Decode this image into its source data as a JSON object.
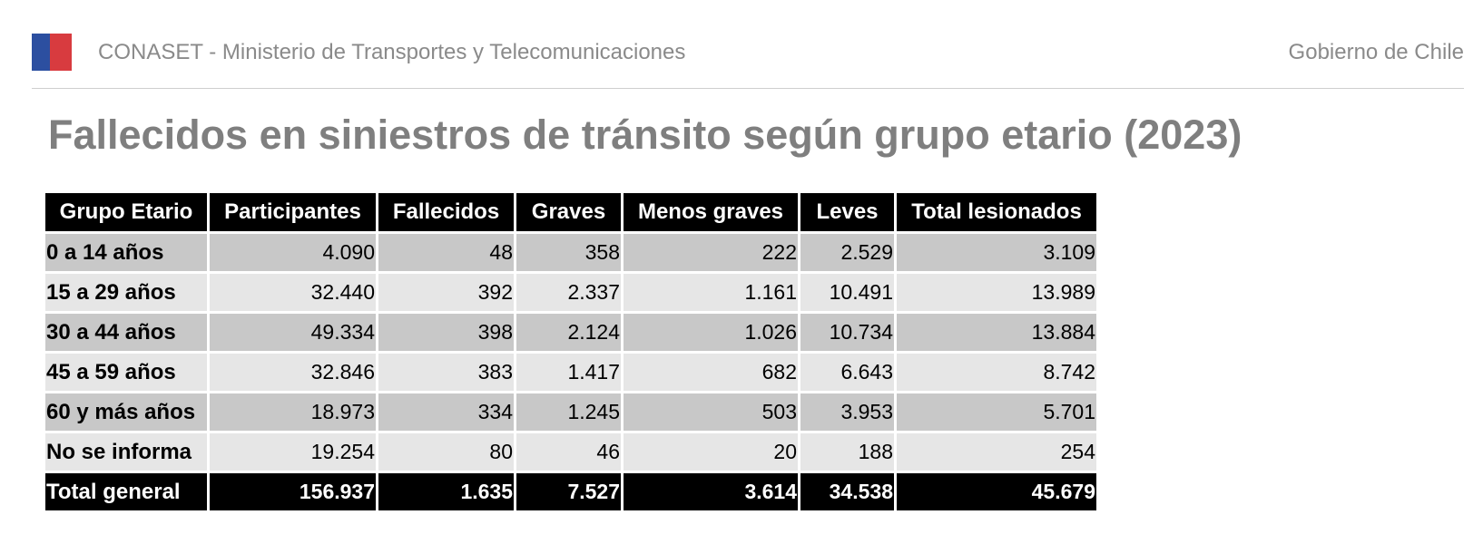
{
  "header": {
    "organization": "CONASET - Ministerio de Transportes y Telecomunicaciones",
    "government": "Gobierno de Chile",
    "flag_colors": [
      "#2c4fa0",
      "#d83b3f"
    ]
  },
  "page_title": "Fallecidos en siniestros de tránsito según grupo etario (2023)",
  "table": {
    "columns": [
      "Grupo Etario",
      "Participantes",
      "Fallecidos",
      "Graves",
      "Menos graves",
      "Leves",
      "Total lesionados"
    ],
    "rows": [
      [
        "0 a 14 años",
        "4.090",
        "48",
        "358",
        "222",
        "2.529",
        "3.109"
      ],
      [
        "15 a 29 años",
        "32.440",
        "392",
        "2.337",
        "1.161",
        "10.491",
        "13.989"
      ],
      [
        "30 a 44 años",
        "49.334",
        "398",
        "2.124",
        "1.026",
        "10.734",
        "13.884"
      ],
      [
        "45 a 59 años",
        "32.846",
        "383",
        "1.417",
        "682",
        "6.643",
        "8.742"
      ],
      [
        "60 y más años",
        "18.973",
        "334",
        "1.245",
        "503",
        "3.953",
        "5.701"
      ],
      [
        "No se informa",
        "19.254",
        "80",
        "46",
        "20",
        "188",
        "254"
      ]
    ],
    "total": [
      "Total general",
      "156.937",
      "1.635",
      "7.527",
      "3.614",
      "34.538",
      "45.679"
    ]
  }
}
